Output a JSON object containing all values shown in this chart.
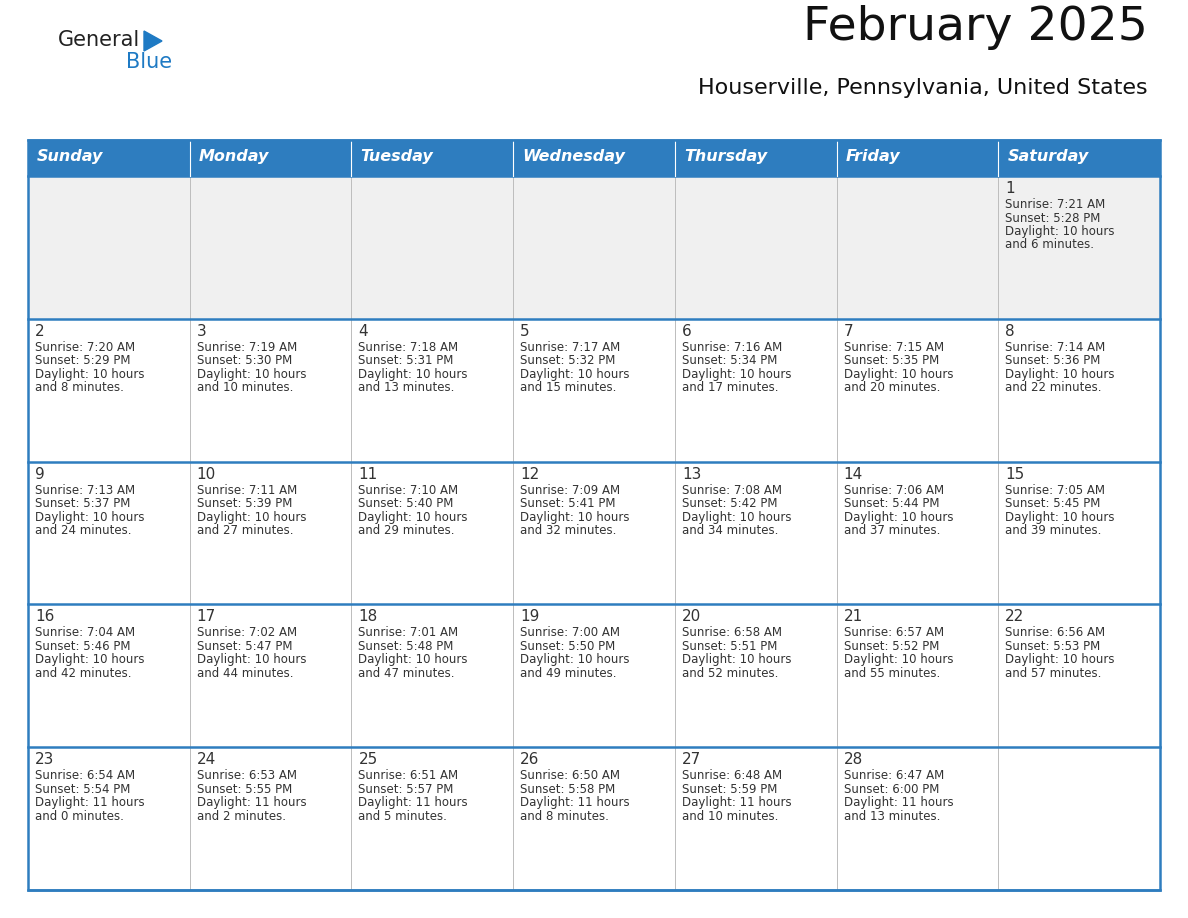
{
  "title": "February 2025",
  "subtitle": "Houserville, Pennsylvania, United States",
  "days_of_week": [
    "Sunday",
    "Monday",
    "Tuesday",
    "Wednesday",
    "Thursday",
    "Friday",
    "Saturday"
  ],
  "header_bg": "#2E7DBF",
  "header_text_color": "#FFFFFF",
  "cell_bg_light": "#F0F0F0",
  "cell_bg_white": "#FFFFFF",
  "border_color": "#2E7DBF",
  "text_color": "#333333",
  "logo_general_color": "#222222",
  "logo_blue_color": "#1E7AC4",
  "calendar_data": [
    {
      "day": 1,
      "row": 0,
      "col": 6,
      "sunrise": "7:21 AM",
      "sunset": "5:28 PM",
      "daylight_hours": 10,
      "daylight_minutes": 6
    },
    {
      "day": 2,
      "row": 1,
      "col": 0,
      "sunrise": "7:20 AM",
      "sunset": "5:29 PM",
      "daylight_hours": 10,
      "daylight_minutes": 8
    },
    {
      "day": 3,
      "row": 1,
      "col": 1,
      "sunrise": "7:19 AM",
      "sunset": "5:30 PM",
      "daylight_hours": 10,
      "daylight_minutes": 10
    },
    {
      "day": 4,
      "row": 1,
      "col": 2,
      "sunrise": "7:18 AM",
      "sunset": "5:31 PM",
      "daylight_hours": 10,
      "daylight_minutes": 13
    },
    {
      "day": 5,
      "row": 1,
      "col": 3,
      "sunrise": "7:17 AM",
      "sunset": "5:32 PM",
      "daylight_hours": 10,
      "daylight_minutes": 15
    },
    {
      "day": 6,
      "row": 1,
      "col": 4,
      "sunrise": "7:16 AM",
      "sunset": "5:34 PM",
      "daylight_hours": 10,
      "daylight_minutes": 17
    },
    {
      "day": 7,
      "row": 1,
      "col": 5,
      "sunrise": "7:15 AM",
      "sunset": "5:35 PM",
      "daylight_hours": 10,
      "daylight_minutes": 20
    },
    {
      "day": 8,
      "row": 1,
      "col": 6,
      "sunrise": "7:14 AM",
      "sunset": "5:36 PM",
      "daylight_hours": 10,
      "daylight_minutes": 22
    },
    {
      "day": 9,
      "row": 2,
      "col": 0,
      "sunrise": "7:13 AM",
      "sunset": "5:37 PM",
      "daylight_hours": 10,
      "daylight_minutes": 24
    },
    {
      "day": 10,
      "row": 2,
      "col": 1,
      "sunrise": "7:11 AM",
      "sunset": "5:39 PM",
      "daylight_hours": 10,
      "daylight_minutes": 27
    },
    {
      "day": 11,
      "row": 2,
      "col": 2,
      "sunrise": "7:10 AM",
      "sunset": "5:40 PM",
      "daylight_hours": 10,
      "daylight_minutes": 29
    },
    {
      "day": 12,
      "row": 2,
      "col": 3,
      "sunrise": "7:09 AM",
      "sunset": "5:41 PM",
      "daylight_hours": 10,
      "daylight_minutes": 32
    },
    {
      "day": 13,
      "row": 2,
      "col": 4,
      "sunrise": "7:08 AM",
      "sunset": "5:42 PM",
      "daylight_hours": 10,
      "daylight_minutes": 34
    },
    {
      "day": 14,
      "row": 2,
      "col": 5,
      "sunrise": "7:06 AM",
      "sunset": "5:44 PM",
      "daylight_hours": 10,
      "daylight_minutes": 37
    },
    {
      "day": 15,
      "row": 2,
      "col": 6,
      "sunrise": "7:05 AM",
      "sunset": "5:45 PM",
      "daylight_hours": 10,
      "daylight_minutes": 39
    },
    {
      "day": 16,
      "row": 3,
      "col": 0,
      "sunrise": "7:04 AM",
      "sunset": "5:46 PM",
      "daylight_hours": 10,
      "daylight_minutes": 42
    },
    {
      "day": 17,
      "row": 3,
      "col": 1,
      "sunrise": "7:02 AM",
      "sunset": "5:47 PM",
      "daylight_hours": 10,
      "daylight_minutes": 44
    },
    {
      "day": 18,
      "row": 3,
      "col": 2,
      "sunrise": "7:01 AM",
      "sunset": "5:48 PM",
      "daylight_hours": 10,
      "daylight_minutes": 47
    },
    {
      "day": 19,
      "row": 3,
      "col": 3,
      "sunrise": "7:00 AM",
      "sunset": "5:50 PM",
      "daylight_hours": 10,
      "daylight_minutes": 49
    },
    {
      "day": 20,
      "row": 3,
      "col": 4,
      "sunrise": "6:58 AM",
      "sunset": "5:51 PM",
      "daylight_hours": 10,
      "daylight_minutes": 52
    },
    {
      "day": 21,
      "row": 3,
      "col": 5,
      "sunrise": "6:57 AM",
      "sunset": "5:52 PM",
      "daylight_hours": 10,
      "daylight_minutes": 55
    },
    {
      "day": 22,
      "row": 3,
      "col": 6,
      "sunrise": "6:56 AM",
      "sunset": "5:53 PM",
      "daylight_hours": 10,
      "daylight_minutes": 57
    },
    {
      "day": 23,
      "row": 4,
      "col": 0,
      "sunrise": "6:54 AM",
      "sunset": "5:54 PM",
      "daylight_hours": 11,
      "daylight_minutes": 0
    },
    {
      "day": 24,
      "row": 4,
      "col": 1,
      "sunrise": "6:53 AM",
      "sunset": "5:55 PM",
      "daylight_hours": 11,
      "daylight_minutes": 2
    },
    {
      "day": 25,
      "row": 4,
      "col": 2,
      "sunrise": "6:51 AM",
      "sunset": "5:57 PM",
      "daylight_hours": 11,
      "daylight_minutes": 5
    },
    {
      "day": 26,
      "row": 4,
      "col": 3,
      "sunrise": "6:50 AM",
      "sunset": "5:58 PM",
      "daylight_hours": 11,
      "daylight_minutes": 8
    },
    {
      "day": 27,
      "row": 4,
      "col": 4,
      "sunrise": "6:48 AM",
      "sunset": "5:59 PM",
      "daylight_hours": 11,
      "daylight_minutes": 10
    },
    {
      "day": 28,
      "row": 4,
      "col": 5,
      "sunrise": "6:47 AM",
      "sunset": "6:00 PM",
      "daylight_hours": 11,
      "daylight_minutes": 13
    }
  ]
}
